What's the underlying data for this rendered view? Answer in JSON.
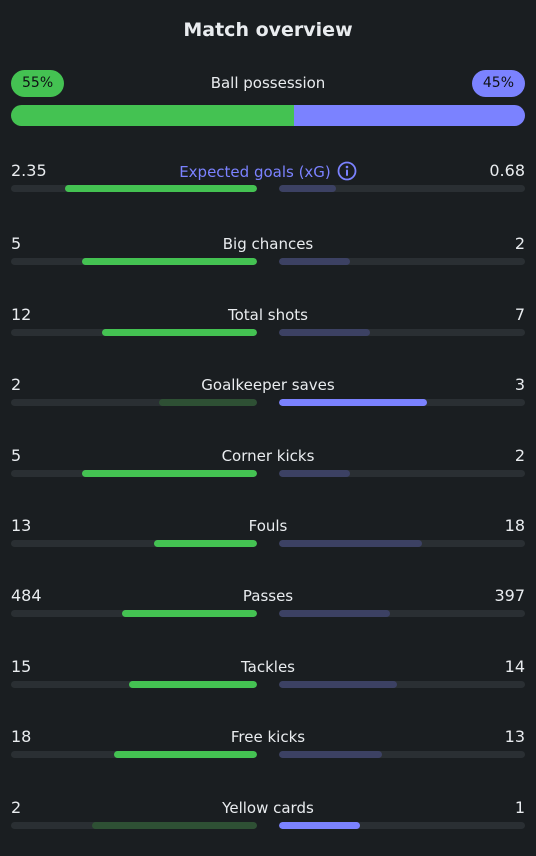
{
  "title": "Match overview",
  "possession": {
    "label": "Ball possession",
    "home": "55%",
    "away": "45%",
    "home_fraction": 0.55,
    "away_fraction": 0.45
  },
  "colors": {
    "home": "#44c252",
    "away": "#7b82ff",
    "background": "#1a1e21",
    "track": "#2a2f33"
  },
  "stats": [
    {
      "label": "Expected goals (xG)",
      "home": "2.35",
      "away": "0.68",
      "home_fraction": 0.78,
      "away_fraction": 0.23,
      "leader": "home",
      "info_icon": "info-icon"
    },
    {
      "label": "Big chances",
      "home": "5",
      "away": "2",
      "home_fraction": 0.71,
      "away_fraction": 0.29,
      "leader": "home"
    },
    {
      "label": "Total shots",
      "home": "12",
      "away": "7",
      "home_fraction": 0.63,
      "away_fraction": 0.37,
      "leader": "home"
    },
    {
      "label": "Goalkeeper saves",
      "home": "2",
      "away": "3",
      "home_fraction": 0.4,
      "away_fraction": 0.6,
      "leader": "away"
    },
    {
      "label": "Corner kicks",
      "home": "5",
      "away": "2",
      "home_fraction": 0.71,
      "away_fraction": 0.29,
      "leader": "home"
    },
    {
      "label": "Fouls",
      "home": "13",
      "away": "18",
      "home_fraction": 0.42,
      "away_fraction": 0.58,
      "leader": "home"
    },
    {
      "label": "Passes",
      "home": "484",
      "away": "397",
      "home_fraction": 0.55,
      "away_fraction": 0.45,
      "leader": "home"
    },
    {
      "label": "Tackles",
      "home": "15",
      "away": "14",
      "home_fraction": 0.52,
      "away_fraction": 0.48,
      "leader": "home"
    },
    {
      "label": "Free kicks",
      "home": "18",
      "away": "13",
      "home_fraction": 0.58,
      "away_fraction": 0.42,
      "leader": "home"
    },
    {
      "label": "Yellow cards",
      "home": "2",
      "away": "1",
      "home_fraction": 0.67,
      "away_fraction": 0.33,
      "leader": "away"
    }
  ]
}
